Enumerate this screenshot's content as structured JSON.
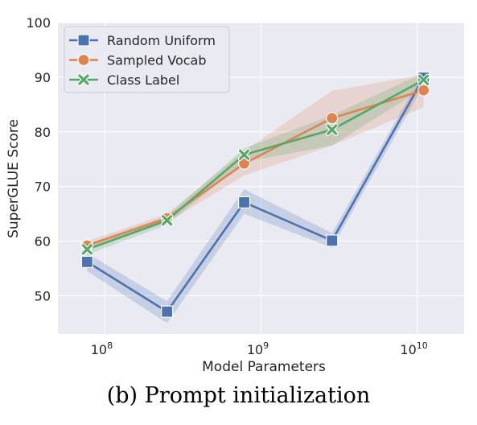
{
  "chart_data": {
    "type": "line",
    "xlabel": "Model Parameters",
    "ylabel": "SuperGLUE Score",
    "x_scale": "log",
    "xlim": [
      50000000,
      20000000000
    ],
    "ylim": [
      43,
      100
    ],
    "x_tick_exponents": [
      8,
      9,
      10
    ],
    "y_ticks": [
      50,
      60,
      70,
      80,
      90,
      100
    ],
    "grid": true,
    "legend_position": "top-left",
    "x": [
      77000000,
      250000000,
      780000000,
      2850000000,
      11000000000
    ],
    "series": [
      {
        "name": "Random Uniform",
        "color": "#4c72b0",
        "marker": "square",
        "values": [
          56.2,
          47.1,
          67.1,
          60.1,
          89.9
        ],
        "band_low": [
          54.5,
          45.0,
          65.0,
          58.8,
          88.5
        ],
        "band_high": [
          57.8,
          49.0,
          69.5,
          61.5,
          91.0
        ]
      },
      {
        "name": "Sampled Vocab",
        "color": "#dd8452",
        "marker": "circle",
        "values": [
          59.2,
          64.2,
          74.2,
          82.5,
          87.6
        ],
        "band_low": [
          58.3,
          63.4,
          72.0,
          77.5,
          84.5
        ],
        "band_high": [
          60.0,
          65.0,
          76.5,
          87.5,
          90.5
        ]
      },
      {
        "name": "Class Label",
        "color": "#55a868",
        "marker": "x",
        "values": [
          58.5,
          63.8,
          75.8,
          80.4,
          89.5
        ],
        "band_low": [
          57.5,
          63.0,
          74.5,
          77.5,
          88.0
        ],
        "band_high": [
          59.5,
          64.6,
          77.0,
          83.0,
          90.8
        ]
      }
    ]
  },
  "caption": "(b) Prompt initialization"
}
